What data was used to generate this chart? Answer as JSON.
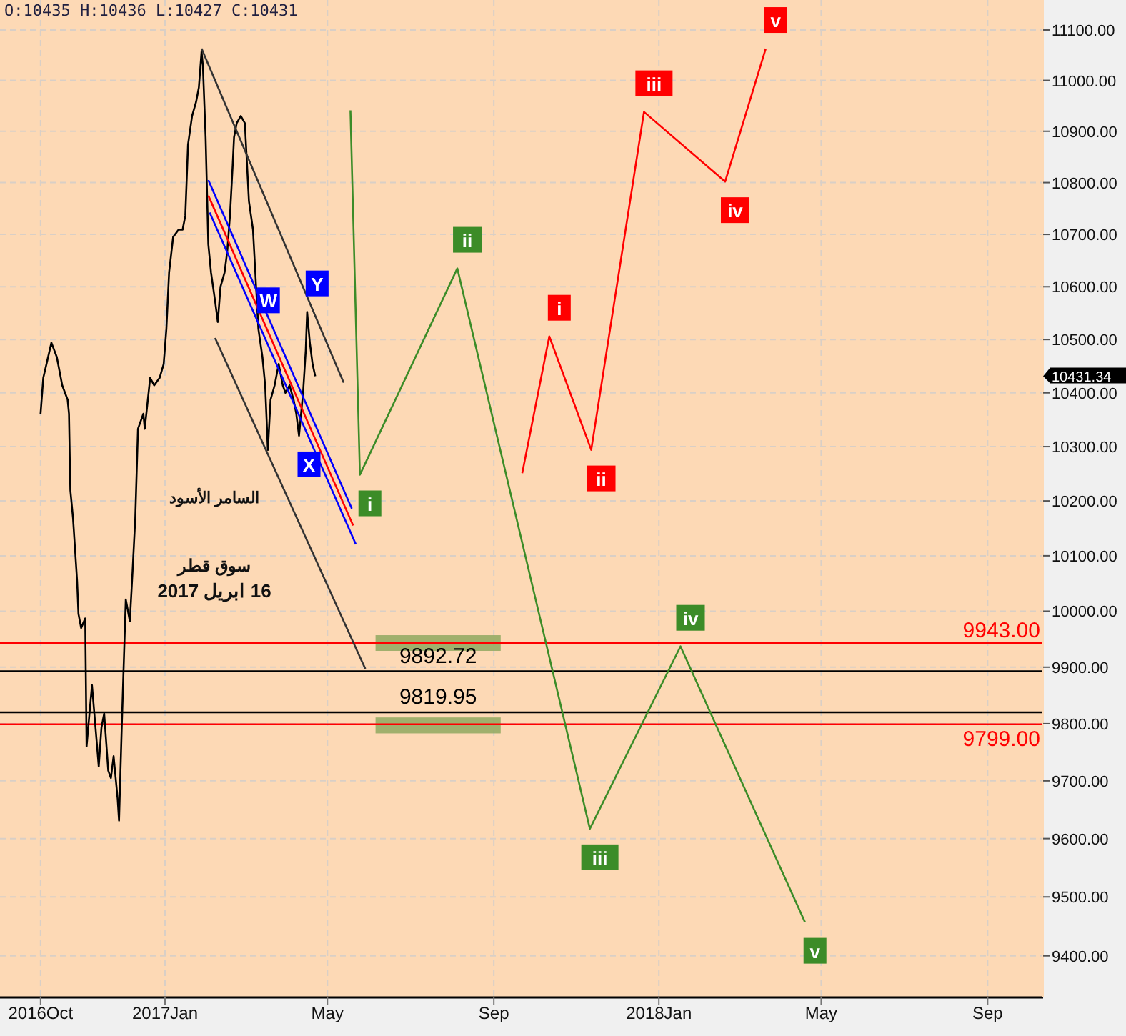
{
  "chart_data": {
    "type": "line",
    "log": true,
    "grid": true,
    "xlim": [
      "2016-09-01",
      "2018-10-12"
    ],
    "ylim": [
      9330,
      11160
    ],
    "xticks": [
      {
        "value": "2016-10-01",
        "label": "2016Oct"
      },
      {
        "value": "2017-01-01",
        "label": "2017Jan"
      },
      {
        "value": "2017-05-01",
        "label": "May"
      },
      {
        "value": "2017-09-01",
        "label": "Sep"
      },
      {
        "value": "2018-01-01",
        "label": "2018Jan"
      },
      {
        "value": "2018-05-01",
        "label": "May"
      },
      {
        "value": "2018-09-01",
        "label": "Sep"
      }
    ],
    "yticks": [
      {
        "value": 9400,
        "label": "9400.00"
      },
      {
        "value": 9500,
        "label": "9500.00"
      },
      {
        "value": 9600,
        "label": "9600.00"
      },
      {
        "value": 9700,
        "label": "9700.00"
      },
      {
        "value": 9800,
        "label": "9800.00"
      },
      {
        "value": 9900,
        "label": "9900.00"
      },
      {
        "value": 10000,
        "label": "10000.00"
      },
      {
        "value": 10100,
        "label": "10100.00"
      },
      {
        "value": 10200,
        "label": "10200.00"
      },
      {
        "value": 10300,
        "label": "10300.00"
      },
      {
        "value": 10400,
        "label": "10400.00"
      },
      {
        "value": 10500,
        "label": "10500.00"
      },
      {
        "value": 10600,
        "label": "10600.00"
      },
      {
        "value": 10700,
        "label": "10700.00"
      },
      {
        "value": 10800,
        "label": "10800.00"
      },
      {
        "value": 10900,
        "label": "10900.00"
      },
      {
        "value": 11000,
        "label": "11000.00"
      },
      {
        "value": 11100,
        "label": "11100.00"
      }
    ],
    "series": [
      {
        "color": "#000000",
        "x": [
          "2016-10-01",
          "2016-10-03",
          "2016-10-09",
          "2016-10-13",
          "2016-10-17",
          "2016-10-21",
          "2016-10-22",
          "2016-10-23",
          "2016-10-25",
          "2016-10-28",
          "2016-10-29",
          "2016-10-31",
          "2016-11-03",
          "2016-11-04",
          "2016-11-08",
          "2016-11-13",
          "2016-11-15",
          "2016-11-17",
          "2016-11-20",
          "2016-11-22",
          "2016-11-24",
          "2016-11-27",
          "2016-11-28",
          "2016-11-30",
          "2016-12-03",
          "2016-12-06",
          "2016-12-08",
          "2016-12-10",
          "2016-12-12",
          "2016-12-16",
          "2016-12-17",
          "2016-12-21",
          "2016-12-24",
          "2016-12-28",
          "2016-12-31",
          "2017-01-02",
          "2017-01-04",
          "2017-01-07",
          "2017-01-11",
          "2017-01-14",
          "2017-01-16",
          "2017-01-18",
          "2017-01-21",
          "2017-01-24",
          "2017-01-26",
          "2017-01-28",
          "2017-01-29",
          "2017-01-31",
          "2017-02-02",
          "2017-02-04",
          "2017-02-07",
          "2017-02-09",
          "2017-02-11",
          "2017-02-14",
          "2017-02-16",
          "2017-02-18",
          "2017-02-20",
          "2017-02-21",
          "2017-02-23",
          "2017-02-26",
          "2017-03-01",
          "2017-03-04",
          "2017-03-07",
          "2017-03-09",
          "2017-03-11",
          "2017-03-14",
          "2017-03-16",
          "2017-03-18",
          "2017-03-20",
          "2017-03-23",
          "2017-03-26",
          "2017-03-29",
          "2017-03-31",
          "2017-04-03",
          "2017-04-06",
          "2017-04-08",
          "2017-04-10",
          "2017-04-13",
          "2017-04-15",
          "2017-04-16",
          "2017-04-18",
          "2017-04-20",
          "2017-04-22"
        ],
        "values": [
          10361,
          10428,
          10494,
          10467,
          10414,
          10387,
          10361,
          10220,
          10168,
          10054,
          9995,
          9970,
          9987,
          9760,
          9868,
          9725,
          9793,
          9818,
          9718,
          9705,
          9743,
          9668,
          9631,
          9793,
          10021,
          9982,
          10072,
          10168,
          10333,
          10361,
          10333,
          10428,
          10414,
          10428,
          10454,
          10520,
          10627,
          10695,
          10709,
          10709,
          10736,
          10874,
          10930,
          10958,
          10986,
          11057,
          11029,
          10888,
          10681,
          10627,
          10573,
          10533,
          10600,
          10627,
          10668,
          10736,
          10833,
          10888,
          10916,
          10930,
          10916,
          10764,
          10709,
          10614,
          10520,
          10467,
          10414,
          10294,
          10387,
          10414,
          10454,
          10414,
          10400,
          10414,
          10387,
          10361,
          10320,
          10400,
          10480,
          10552,
          10494,
          10454,
          10431
        ],
        "value_labels": [
          null,
          null,
          null,
          null,
          null,
          null,
          null,
          null,
          null,
          null,
          null,
          null,
          null,
          null,
          null,
          null,
          null,
          null,
          null,
          null,
          null,
          null,
          null,
          null,
          null,
          null,
          null,
          null,
          null,
          null,
          null,
          null,
          null,
          null,
          null,
          null,
          null,
          null,
          null,
          null,
          null,
          null,
          null,
          null,
          null,
          null,
          null,
          null,
          null,
          null,
          null,
          null,
          null,
          null,
          null,
          null,
          null,
          null,
          null,
          null,
          null,
          null,
          null,
          null,
          "W",
          null,
          null,
          null,
          null,
          null,
          null,
          null,
          null,
          null,
          null,
          null,
          "X",
          null,
          null,
          "Y",
          null,
          null,
          null
        ]
      },
      {
        "color": "#333333",
        "x": [
          "2017-01-28",
          "2017-05-13"
        ],
        "values": [
          11063,
          10419
        ]
      },
      {
        "color": "#333333",
        "x": [
          "2017-02-07",
          "2017-05-29"
        ],
        "values": [
          10503,
          9897
        ]
      },
      {
        "color": "#0000ff",
        "x": [
          "2017-02-02",
          "2017-05-19"
        ],
        "values": [
          10805,
          10186
        ]
      },
      {
        "color": "#ff0000",
        "x": [
          "2017-02-02",
          "2017-05-20"
        ],
        "values": [
          10775,
          10155
        ]
      },
      {
        "color": "#0000ff",
        "x": [
          "2017-02-03",
          "2017-05-22"
        ],
        "values": [
          10742,
          10121
        ]
      },
      {
        "color": "#3c8c28",
        "x": [
          "2017-05-18",
          "2017-05-25",
          "2017-08-05",
          "2017-11-11",
          "2018-01-17",
          "2018-04-19"
        ],
        "values": [
          10941,
          10248,
          10635,
          9617,
          9937,
          9457
        ],
        "value_labels": [
          null,
          "i",
          "ii",
          "iii",
          "iv",
          "v"
        ]
      },
      {
        "color": "#ff0000",
        "x": [
          "2017-09-22",
          "2017-10-12",
          "2017-11-12",
          "2017-12-21",
          "2018-02-19",
          "2018-03-21"
        ],
        "values": [
          10251,
          10506,
          10294,
          10938,
          10802,
          11063
        ],
        "value_labels": [
          null,
          "i",
          "ii",
          "iii",
          "iv",
          "v"
        ]
      }
    ],
    "ref_lines": [
      {
        "axis": "y",
        "value": 9943,
        "label": "9943.00",
        "color": "#ff0000"
      },
      {
        "axis": "y",
        "value": 9799,
        "label": "9799.00",
        "color": "#ff0000"
      },
      {
        "axis": "y",
        "value": 9892.72,
        "label": "9892.72",
        "color": "#000000"
      },
      {
        "axis": "y",
        "value": 9819.95,
        "label": "9819.95",
        "color": "#000000"
      }
    ],
    "bands": [
      {
        "axis": "y",
        "from": 9929,
        "to": 9957,
        "color": "#8fa860"
      },
      {
        "axis": "y",
        "from": 9783,
        "to": 9811,
        "color": "#8fa860"
      }
    ],
    "annotations": [
      "O:10435 H:10436 L:10427 C:10431",
      "السامر الأسود",
      "سوق قطر",
      "16 ابريل 2017",
      "10431.34"
    ]
  }
}
